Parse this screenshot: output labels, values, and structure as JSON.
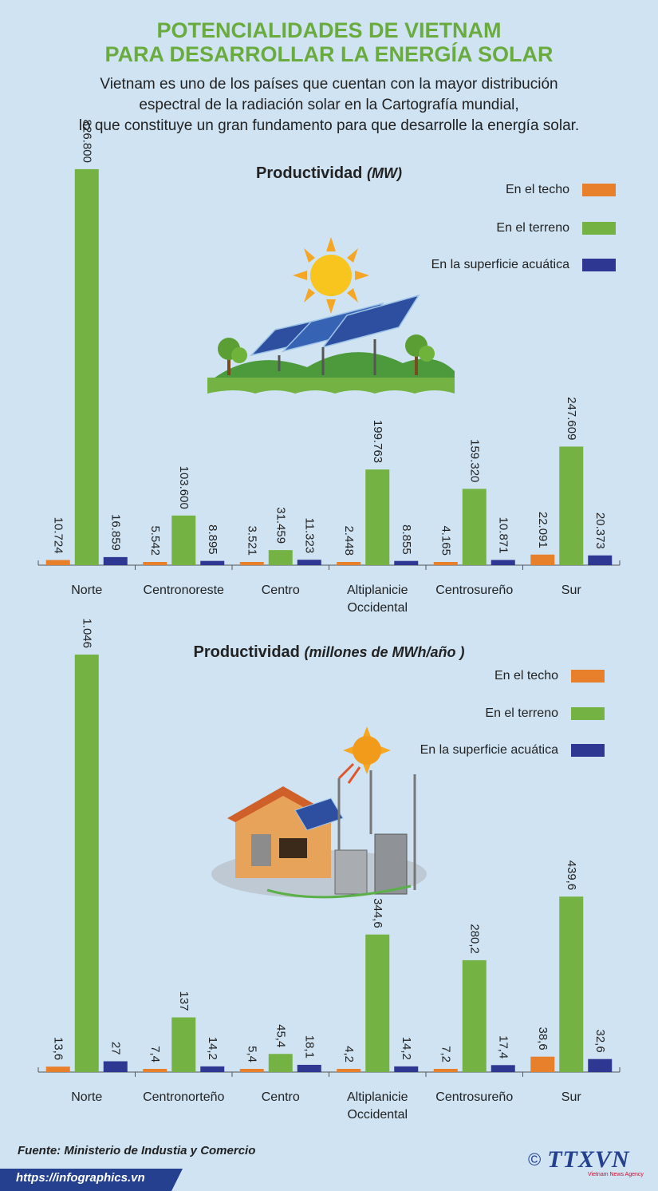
{
  "header": {
    "title_line1": "POTENCIALIDADES DE VIETNAM",
    "title_line2": "PARA DESARROLLAR LA ENERGÍA SOLAR",
    "intro_line1": "Vietnam es uno de los países que cuentan con la mayor distribución",
    "intro_line2": "espectral de la radiación solar en la Cartografía mundial,",
    "intro_line3": "lo que constituye un gran fundamento para que desarrolle la energía solar."
  },
  "footer": {
    "source": "Fuente: Ministerio de Industia y Comercio",
    "url": "https://infographics.vn",
    "logo": "TTXVN",
    "logo_sub": "Vietnam News Agency",
    "copyright": "©"
  },
  "colors": {
    "techo": "#e87f2a",
    "terreno": "#74b343",
    "acuatica": "#2e3892",
    "title_green": "#6aab3e",
    "background": "#cfe3f3"
  },
  "illustrations": [
    "solar-farm-illustration",
    "solar-house-illustration"
  ],
  "chart_data": [
    {
      "type": "bar",
      "title": "Productividad",
      "title_unit": "(MW)",
      "categories": [
        "Norte",
        "Centronoreste",
        "Centro",
        "Altiplanicie Occidental",
        "Centrosureño",
        "Sur"
      ],
      "category_lines": [
        [
          "Norte"
        ],
        [
          "Centronoreste"
        ],
        [
          "Centro"
        ],
        [
          "Altiplanicie",
          "Occidental"
        ],
        [
          "Centrosureño"
        ],
        [
          "Sur"
        ]
      ],
      "series": [
        {
          "name": "En el techo",
          "color": "#e87f2a",
          "values": [
            10724,
            5542,
            3521,
            2448,
            4165,
            22091
          ],
          "labels": [
            "10.724",
            "5.542",
            "3.521",
            "2.448",
            "4.165",
            "22.091"
          ]
        },
        {
          "name": "En el terreno",
          "color": "#74b343",
          "values": [
            826800,
            103600,
            31459,
            199763,
            159320,
            247609
          ],
          "labels": [
            "826.800",
            "103.600",
            "31.459",
            "199.763",
            "159.320",
            "247.609"
          ]
        },
        {
          "name": "En la superficie acuática",
          "color": "#2e3892",
          "values": [
            16859,
            8895,
            11323,
            8855,
            10871,
            20373
          ],
          "labels": [
            "16.859",
            "8.895",
            "11.323",
            "8.855",
            "10.871",
            "20.373"
          ]
        }
      ],
      "legend_position": "top-right",
      "grid": false
    },
    {
      "type": "bar",
      "title": "Productividad",
      "title_unit": "(millones de MWh/año )",
      "categories": [
        "Norte",
        "Centronorteño",
        "Centro",
        "Altiplanicie Occidental",
        "Centrosureño",
        "Sur"
      ],
      "category_lines": [
        [
          "Norte"
        ],
        [
          "Centronorteño"
        ],
        [
          "Centro"
        ],
        [
          "Altiplanicie",
          "Occidental"
        ],
        [
          "Centrosureño"
        ],
        [
          "Sur"
        ]
      ],
      "series": [
        {
          "name": "En el techo",
          "color": "#e87f2a",
          "values": [
            13.6,
            7.4,
            5.4,
            4.2,
            7.2,
            38.6
          ],
          "labels": [
            "13,6",
            "7,4",
            "5,4",
            "4,2",
            "7,2",
            "38,6"
          ]
        },
        {
          "name": "En el terreno",
          "color": "#74b343",
          "values": [
            1046,
            137,
            45.4,
            344.6,
            280.2,
            439.6
          ],
          "labels": [
            "1.046",
            "137",
            "45,4",
            "344,6",
            "280,2",
            "439,6"
          ]
        },
        {
          "name": "En la superficie acuática",
          "color": "#2e3892",
          "values": [
            27,
            14.2,
            18.1,
            14.2,
            17.4,
            32.6
          ],
          "labels": [
            "27",
            "14,2",
            "18,1",
            "14,2",
            "17,4",
            "32,6"
          ]
        }
      ],
      "legend_position": "top-right",
      "grid": false
    }
  ]
}
